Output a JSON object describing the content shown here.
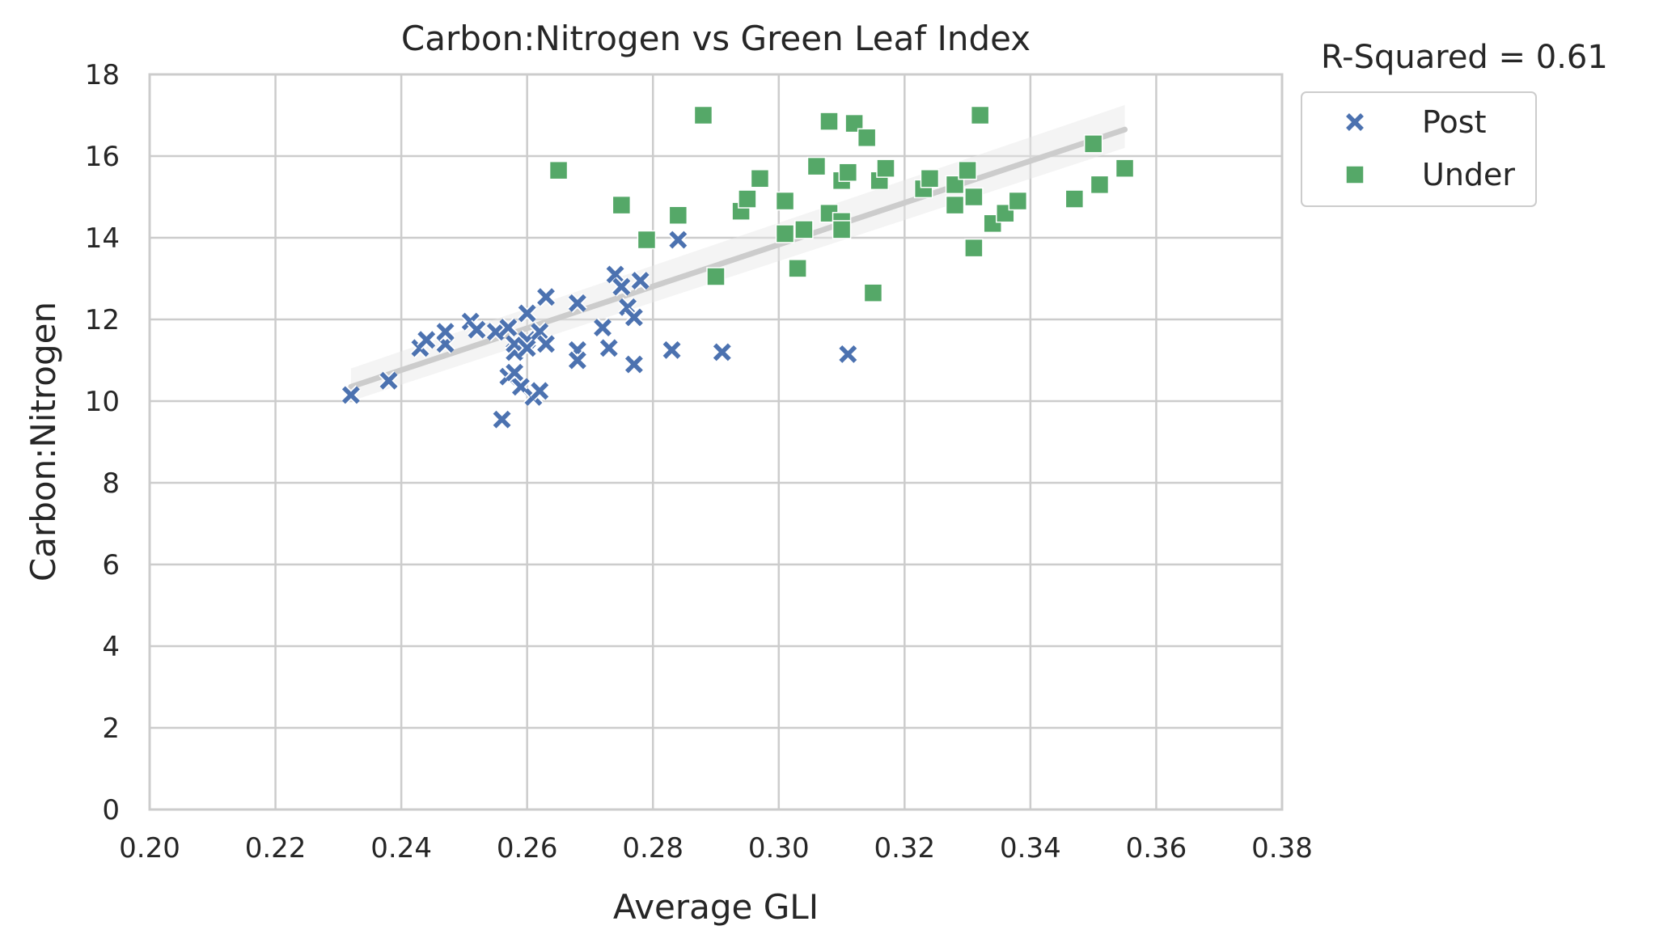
{
  "chart_data": {
    "type": "scatter",
    "title": "Carbon:Nitrogen vs Green Leaf Index",
    "xlabel": "Average GLI",
    "ylabel": "Carbon:Nitrogen",
    "xlim": [
      0.2,
      0.38
    ],
    "ylim": [
      0,
      18
    ],
    "xticks": [
      "0.20",
      "0.22",
      "0.24",
      "0.26",
      "0.28",
      "0.30",
      "0.32",
      "0.34",
      "0.36",
      "0.38"
    ],
    "yticks": [
      "0",
      "2",
      "4",
      "6",
      "8",
      "10",
      "12",
      "14",
      "16",
      "18"
    ],
    "grid": true,
    "legend_position": "outside-right",
    "annotation": "R-Squared = 0.61",
    "regression": {
      "x": [
        0.232,
        0.355
      ],
      "y": [
        10.35,
        16.65
      ],
      "ci_lower": [
        10.0,
        16.2
      ],
      "ci_upper": [
        10.8,
        17.25
      ],
      "color": "#cccccc"
    },
    "series": [
      {
        "name": "Post",
        "marker": "x",
        "color": "#4c72b0",
        "points": [
          [
            0.232,
            10.15
          ],
          [
            0.238,
            10.5
          ],
          [
            0.243,
            11.3
          ],
          [
            0.244,
            11.5
          ],
          [
            0.247,
            11.4
          ],
          [
            0.247,
            11.7
          ],
          [
            0.251,
            11.95
          ],
          [
            0.252,
            11.75
          ],
          [
            0.255,
            11.7
          ],
          [
            0.256,
            9.55
          ],
          [
            0.257,
            11.8
          ],
          [
            0.257,
            10.6
          ],
          [
            0.258,
            11.2
          ],
          [
            0.258,
            11.4
          ],
          [
            0.258,
            10.7
          ],
          [
            0.259,
            10.35
          ],
          [
            0.26,
            11.5
          ],
          [
            0.26,
            11.3
          ],
          [
            0.26,
            12.15
          ],
          [
            0.261,
            10.1
          ],
          [
            0.262,
            10.25
          ],
          [
            0.262,
            11.7
          ],
          [
            0.263,
            11.4
          ],
          [
            0.263,
            12.55
          ],
          [
            0.268,
            12.4
          ],
          [
            0.268,
            11.25
          ],
          [
            0.268,
            11.0
          ],
          [
            0.272,
            11.8
          ],
          [
            0.273,
            11.3
          ],
          [
            0.274,
            13.1
          ],
          [
            0.275,
            12.8
          ],
          [
            0.276,
            12.3
          ],
          [
            0.277,
            10.9
          ],
          [
            0.277,
            12.05
          ],
          [
            0.278,
            12.95
          ],
          [
            0.283,
            11.25
          ],
          [
            0.284,
            13.95
          ],
          [
            0.291,
            11.2
          ],
          [
            0.311,
            11.15
          ]
        ]
      },
      {
        "name": "Under",
        "marker": "square",
        "color": "#55a868",
        "points": [
          [
            0.265,
            15.65
          ],
          [
            0.275,
            14.8
          ],
          [
            0.279,
            13.95
          ],
          [
            0.284,
            14.55
          ],
          [
            0.288,
            17.0
          ],
          [
            0.29,
            13.05
          ],
          [
            0.294,
            14.65
          ],
          [
            0.295,
            14.95
          ],
          [
            0.297,
            15.45
          ],
          [
            0.301,
            14.9
          ],
          [
            0.301,
            14.1
          ],
          [
            0.303,
            13.25
          ],
          [
            0.304,
            14.2
          ],
          [
            0.306,
            15.75
          ],
          [
            0.308,
            16.85
          ],
          [
            0.308,
            14.6
          ],
          [
            0.31,
            14.4
          ],
          [
            0.31,
            15.4
          ],
          [
            0.31,
            14.2
          ],
          [
            0.311,
            15.6
          ],
          [
            0.312,
            16.8
          ],
          [
            0.314,
            16.45
          ],
          [
            0.315,
            12.65
          ],
          [
            0.316,
            15.4
          ],
          [
            0.317,
            15.7
          ],
          [
            0.323,
            15.2
          ],
          [
            0.324,
            15.45
          ],
          [
            0.328,
            15.3
          ],
          [
            0.328,
            14.8
          ],
          [
            0.33,
            15.65
          ],
          [
            0.331,
            15.0
          ],
          [
            0.331,
            13.75
          ],
          [
            0.332,
            17.0
          ],
          [
            0.334,
            14.35
          ],
          [
            0.336,
            14.6
          ],
          [
            0.338,
            14.9
          ],
          [
            0.347,
            14.95
          ],
          [
            0.35,
            16.3
          ],
          [
            0.351,
            15.3
          ],
          [
            0.355,
            15.7
          ]
        ]
      }
    ]
  }
}
